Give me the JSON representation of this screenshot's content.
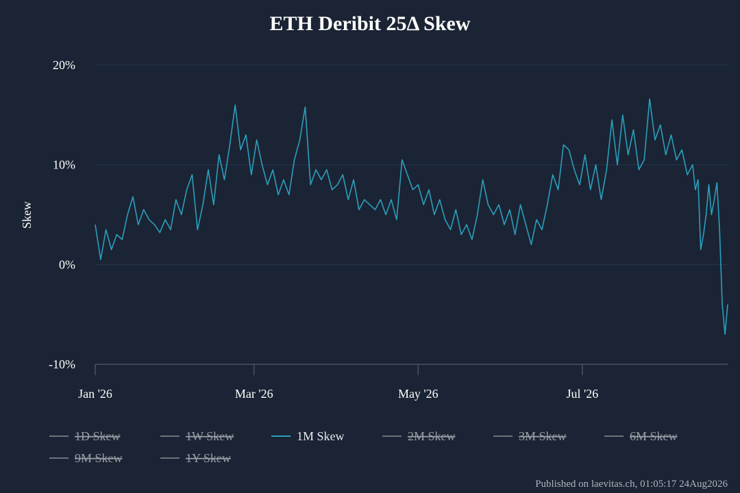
{
  "chart_data": {
    "type": "line",
    "title": "ETH Deribit 25Δ Skew",
    "ylabel": "Skew",
    "xlabel": "",
    "x_range": [
      "2026-01-01",
      "2026-08-24"
    ],
    "ylim": [
      -10,
      20
    ],
    "y_ticks": [
      {
        "value": 20,
        "label": "20%"
      },
      {
        "value": 10,
        "label": "10%"
      },
      {
        "value": 0,
        "label": "0%"
      },
      {
        "value": -10,
        "label": "-10%"
      }
    ],
    "x_ticks": [
      {
        "date": "2026-01-01",
        "label": "Jan '26"
      },
      {
        "date": "2026-03-01",
        "label": "Mar '26"
      },
      {
        "date": "2026-05-01",
        "label": "May '26"
      },
      {
        "date": "2026-07-01",
        "label": "Jul '26"
      }
    ],
    "grid": true,
    "legend_position": "bottom-left",
    "legend": [
      {
        "name": "1D Skew",
        "visible": false
      },
      {
        "name": "1W Skew",
        "visible": false
      },
      {
        "name": "1M Skew",
        "visible": true
      },
      {
        "name": "2M Skew",
        "visible": false
      },
      {
        "name": "3M Skew",
        "visible": false
      },
      {
        "name": "6M Skew",
        "visible": false
      },
      {
        "name": "9M Skew",
        "visible": false
      },
      {
        "name": "1Y Skew",
        "visible": false
      }
    ],
    "series": [
      {
        "name": "1M Skew",
        "color": "#2b9fbd",
        "points": [
          [
            "2026-01-01",
            4.0
          ],
          [
            "2026-01-03",
            0.5
          ],
          [
            "2026-01-05",
            3.5
          ],
          [
            "2026-01-07",
            1.5
          ],
          [
            "2026-01-09",
            3.0
          ],
          [
            "2026-01-11",
            2.5
          ],
          [
            "2026-01-13",
            5.0
          ],
          [
            "2026-01-15",
            6.8
          ],
          [
            "2026-01-17",
            4.0
          ],
          [
            "2026-01-19",
            5.5
          ],
          [
            "2026-01-21",
            4.5
          ],
          [
            "2026-01-23",
            4.0
          ],
          [
            "2026-01-25",
            3.2
          ],
          [
            "2026-01-27",
            4.5
          ],
          [
            "2026-01-29",
            3.5
          ],
          [
            "2026-01-31",
            6.5
          ],
          [
            "2026-02-02",
            5.0
          ],
          [
            "2026-02-04",
            7.5
          ],
          [
            "2026-02-06",
            9.0
          ],
          [
            "2026-02-08",
            3.5
          ],
          [
            "2026-02-10",
            6.0
          ],
          [
            "2026-02-12",
            9.5
          ],
          [
            "2026-02-14",
            6.0
          ],
          [
            "2026-02-16",
            11.0
          ],
          [
            "2026-02-18",
            8.5
          ],
          [
            "2026-02-20",
            12.0
          ],
          [
            "2026-02-22",
            16.0
          ],
          [
            "2026-02-24",
            11.5
          ],
          [
            "2026-02-26",
            13.0
          ],
          [
            "2026-02-28",
            9.0
          ],
          [
            "2026-03-02",
            12.5
          ],
          [
            "2026-03-04",
            10.0
          ],
          [
            "2026-03-06",
            8.0
          ],
          [
            "2026-03-08",
            9.5
          ],
          [
            "2026-03-10",
            7.0
          ],
          [
            "2026-03-12",
            8.5
          ],
          [
            "2026-03-14",
            7.0
          ],
          [
            "2026-03-16",
            10.5
          ],
          [
            "2026-03-18",
            12.5
          ],
          [
            "2026-03-20",
            15.8
          ],
          [
            "2026-03-22",
            8.0
          ],
          [
            "2026-03-24",
            9.5
          ],
          [
            "2026-03-26",
            8.5
          ],
          [
            "2026-03-28",
            9.5
          ],
          [
            "2026-03-30",
            7.5
          ],
          [
            "2026-04-01",
            8.0
          ],
          [
            "2026-04-03",
            9.0
          ],
          [
            "2026-04-05",
            6.5
          ],
          [
            "2026-04-07",
            8.5
          ],
          [
            "2026-04-09",
            5.5
          ],
          [
            "2026-04-11",
            6.5
          ],
          [
            "2026-04-13",
            6.0
          ],
          [
            "2026-04-15",
            5.5
          ],
          [
            "2026-04-17",
            6.5
          ],
          [
            "2026-04-19",
            5.0
          ],
          [
            "2026-04-21",
            6.5
          ],
          [
            "2026-04-23",
            4.5
          ],
          [
            "2026-04-25",
            10.5
          ],
          [
            "2026-04-27",
            9.0
          ],
          [
            "2026-04-29",
            7.5
          ],
          [
            "2026-05-01",
            8.0
          ],
          [
            "2026-05-03",
            6.0
          ],
          [
            "2026-05-05",
            7.5
          ],
          [
            "2026-05-07",
            5.0
          ],
          [
            "2026-05-09",
            6.5
          ],
          [
            "2026-05-11",
            4.5
          ],
          [
            "2026-05-13",
            3.5
          ],
          [
            "2026-05-15",
            5.5
          ],
          [
            "2026-05-17",
            3.0
          ],
          [
            "2026-05-19",
            4.0
          ],
          [
            "2026-05-21",
            2.5
          ],
          [
            "2026-05-23",
            5.0
          ],
          [
            "2026-05-25",
            8.5
          ],
          [
            "2026-05-27",
            6.0
          ],
          [
            "2026-05-29",
            5.0
          ],
          [
            "2026-05-31",
            6.0
          ],
          [
            "2026-06-02",
            4.0
          ],
          [
            "2026-06-04",
            5.5
          ],
          [
            "2026-06-06",
            3.0
          ],
          [
            "2026-06-08",
            6.0
          ],
          [
            "2026-06-10",
            4.0
          ],
          [
            "2026-06-12",
            2.0
          ],
          [
            "2026-06-14",
            4.5
          ],
          [
            "2026-06-16",
            3.5
          ],
          [
            "2026-06-18",
            6.0
          ],
          [
            "2026-06-20",
            9.0
          ],
          [
            "2026-06-22",
            7.5
          ],
          [
            "2026-06-24",
            12.0
          ],
          [
            "2026-06-26",
            11.5
          ],
          [
            "2026-06-28",
            9.5
          ],
          [
            "2026-06-30",
            8.0
          ],
          [
            "2026-07-02",
            11.0
          ],
          [
            "2026-07-04",
            7.5
          ],
          [
            "2026-07-06",
            10.0
          ],
          [
            "2026-07-08",
            6.5
          ],
          [
            "2026-07-10",
            9.5
          ],
          [
            "2026-07-12",
            14.5
          ],
          [
            "2026-07-14",
            10.0
          ],
          [
            "2026-07-16",
            15.0
          ],
          [
            "2026-07-18",
            11.0
          ],
          [
            "2026-07-20",
            13.5
          ],
          [
            "2026-07-22",
            9.5
          ],
          [
            "2026-07-24",
            10.5
          ],
          [
            "2026-07-26",
            16.6
          ],
          [
            "2026-07-28",
            12.5
          ],
          [
            "2026-07-30",
            14.0
          ],
          [
            "2026-08-01",
            11.0
          ],
          [
            "2026-08-03",
            13.0
          ],
          [
            "2026-08-05",
            10.5
          ],
          [
            "2026-08-07",
            11.5
          ],
          [
            "2026-08-09",
            9.0
          ],
          [
            "2026-08-11",
            10.0
          ],
          [
            "2026-08-12",
            7.5
          ],
          [
            "2026-08-13",
            8.5
          ],
          [
            "2026-08-14",
            1.5
          ],
          [
            "2026-08-15",
            3.0
          ],
          [
            "2026-08-16",
            5.0
          ],
          [
            "2026-08-17",
            8.0
          ],
          [
            "2026-08-18",
            5.0
          ],
          [
            "2026-08-19",
            6.5
          ],
          [
            "2026-08-20",
            8.2
          ],
          [
            "2026-08-21",
            3.5
          ],
          [
            "2026-08-22",
            -4.0
          ],
          [
            "2026-08-23",
            -7.0
          ],
          [
            "2026-08-24",
            -4.0
          ]
        ]
      }
    ]
  },
  "footer": {
    "credit": "Published on laevitas.ch, 01:05:17 24Aug2026"
  }
}
